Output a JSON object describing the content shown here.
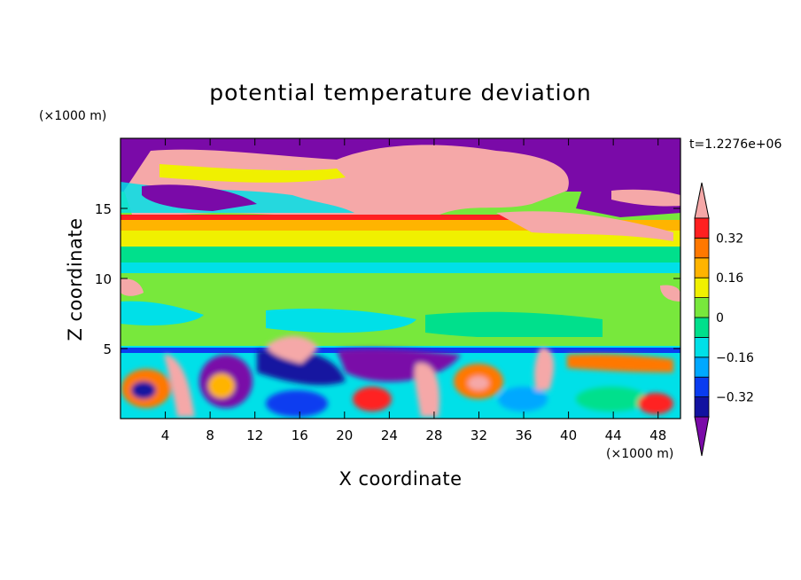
{
  "chart_data": {
    "type": "heatmap",
    "title": "potential temperature deviation",
    "xlabel": "X coordinate",
    "ylabel": "Z coordinate",
    "x_unit_label": "(×1000 m)",
    "y_unit_label": "(×1000 m)",
    "time_label": "t=1.2276e+06",
    "xlim": [
      0,
      50
    ],
    "ylim": [
      0,
      20
    ],
    "x_ticks": [
      4,
      8,
      12,
      16,
      20,
      24,
      28,
      32,
      36,
      40,
      44,
      48
    ],
    "y_ticks": [
      5,
      10,
      15
    ],
    "colorbar": {
      "levels": [
        -0.4,
        -0.32,
        -0.24,
        -0.16,
        -0.08,
        0,
        0.08,
        0.16,
        0.24,
        0.32,
        0.4
      ],
      "labeled_levels": [
        -0.32,
        -0.16,
        0,
        0.16,
        0.32
      ],
      "labels": [
        "−0.32",
        "−0.16",
        "0",
        "0.16",
        "0.32"
      ],
      "colors": [
        "#7a0aa8",
        "#1212a0",
        "#0a3cf0",
        "#00a8ff",
        "#00e0e8",
        "#00e08c",
        "#78e83c",
        "#f0f000",
        "#ffb400",
        "#ff7800",
        "#ff2020",
        "#f5a8a8"
      ],
      "extend": "both"
    }
  }
}
